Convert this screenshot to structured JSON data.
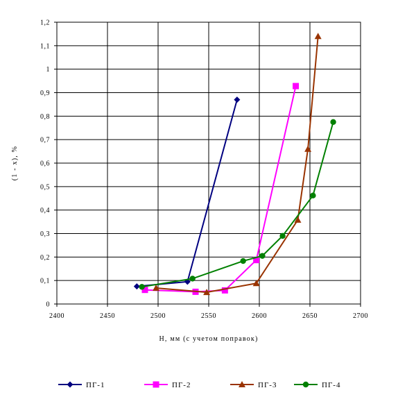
{
  "chart_data": {
    "type": "line",
    "xlabel": "Н, мм (с учетом поправок)",
    "ylabel": "(1 - x), %",
    "xlim": [
      2400,
      2700
    ],
    "ylim": [
      0,
      1.2
    ],
    "x_ticks": [
      "2400",
      "2450",
      "2500",
      "2550",
      "2600",
      "2650",
      "2700"
    ],
    "y_ticks": [
      "0",
      "0,1",
      "0,2",
      "0,3",
      "0,4",
      "0,5",
      "0,6",
      "0,7",
      "0,8",
      "0,9",
      "1",
      "1,1",
      "1,2"
    ],
    "grid": "major vertical and horizontal",
    "legend_position": "bottom",
    "series": [
      {
        "name": "ПГ-1",
        "color": "#000080",
        "marker": "diamond",
        "points": [
          [
            2479,
            0.075
          ],
          [
            2529,
            0.095
          ],
          [
            2578,
            0.87
          ]
        ]
      },
      {
        "name": "ПГ-2",
        "color": "#ff00ff",
        "marker": "square",
        "points": [
          [
            2487,
            0.06
          ],
          [
            2537,
            0.052
          ],
          [
            2566,
            0.058
          ],
          [
            2597,
            0.187
          ],
          [
            2636,
            0.928
          ]
        ]
      },
      {
        "name": "ПГ-3",
        "color": "#993300",
        "marker": "triangle",
        "points": [
          [
            2498,
            0.068
          ],
          [
            2548,
            0.05
          ],
          [
            2597,
            0.088
          ],
          [
            2638,
            0.358
          ],
          [
            2648,
            0.66
          ],
          [
            2658,
            1.14
          ]
        ]
      },
      {
        "name": "ПГ-4",
        "color": "#008000",
        "marker": "circle",
        "points": [
          [
            2484,
            0.073
          ],
          [
            2534,
            0.108
          ],
          [
            2584,
            0.183
          ],
          [
            2603,
            0.205
          ],
          [
            2623,
            0.29
          ],
          [
            2653,
            0.462
          ],
          [
            2673,
            0.775
          ]
        ]
      }
    ]
  }
}
